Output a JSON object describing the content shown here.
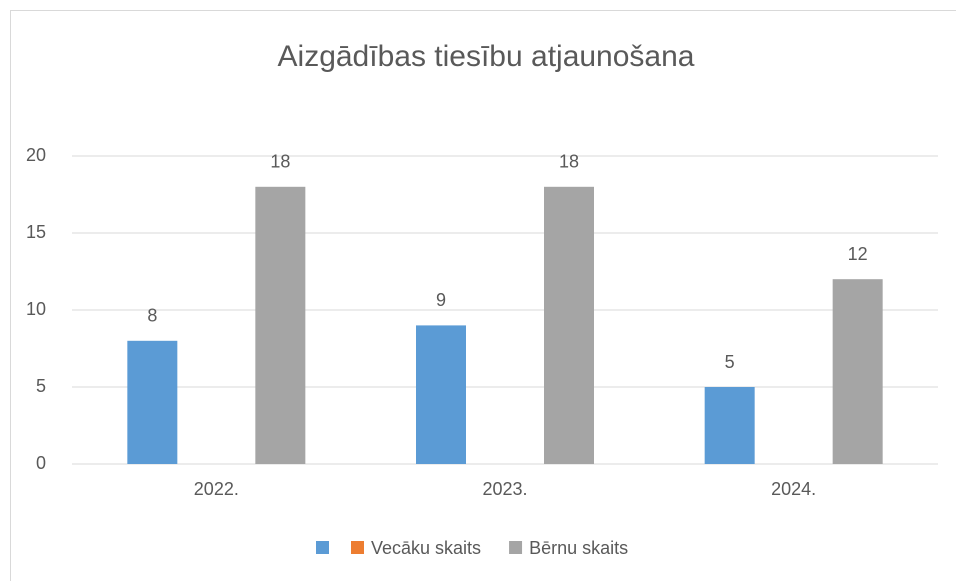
{
  "chart_data": {
    "type": "bar",
    "title": "Aizgādības tiesību atjaunošana",
    "categories": [
      "2022.",
      "2023.",
      "2024."
    ],
    "series": [
      {
        "name": null,
        "color": "#5b9bd5",
        "values": [
          8,
          9,
          5
        ]
      },
      {
        "name": "Vecāku skaits",
        "color": "#ed7d31",
        "values": [
          null,
          null,
          null
        ]
      },
      {
        "name": "Bērnu skaits",
        "color": "#a5a5a5",
        "values": [
          18,
          18,
          12
        ]
      }
    ],
    "ylim": [
      0,
      20
    ],
    "yticks": [
      0,
      5,
      10,
      15,
      20
    ],
    "grid": true,
    "legend": "bottom"
  }
}
